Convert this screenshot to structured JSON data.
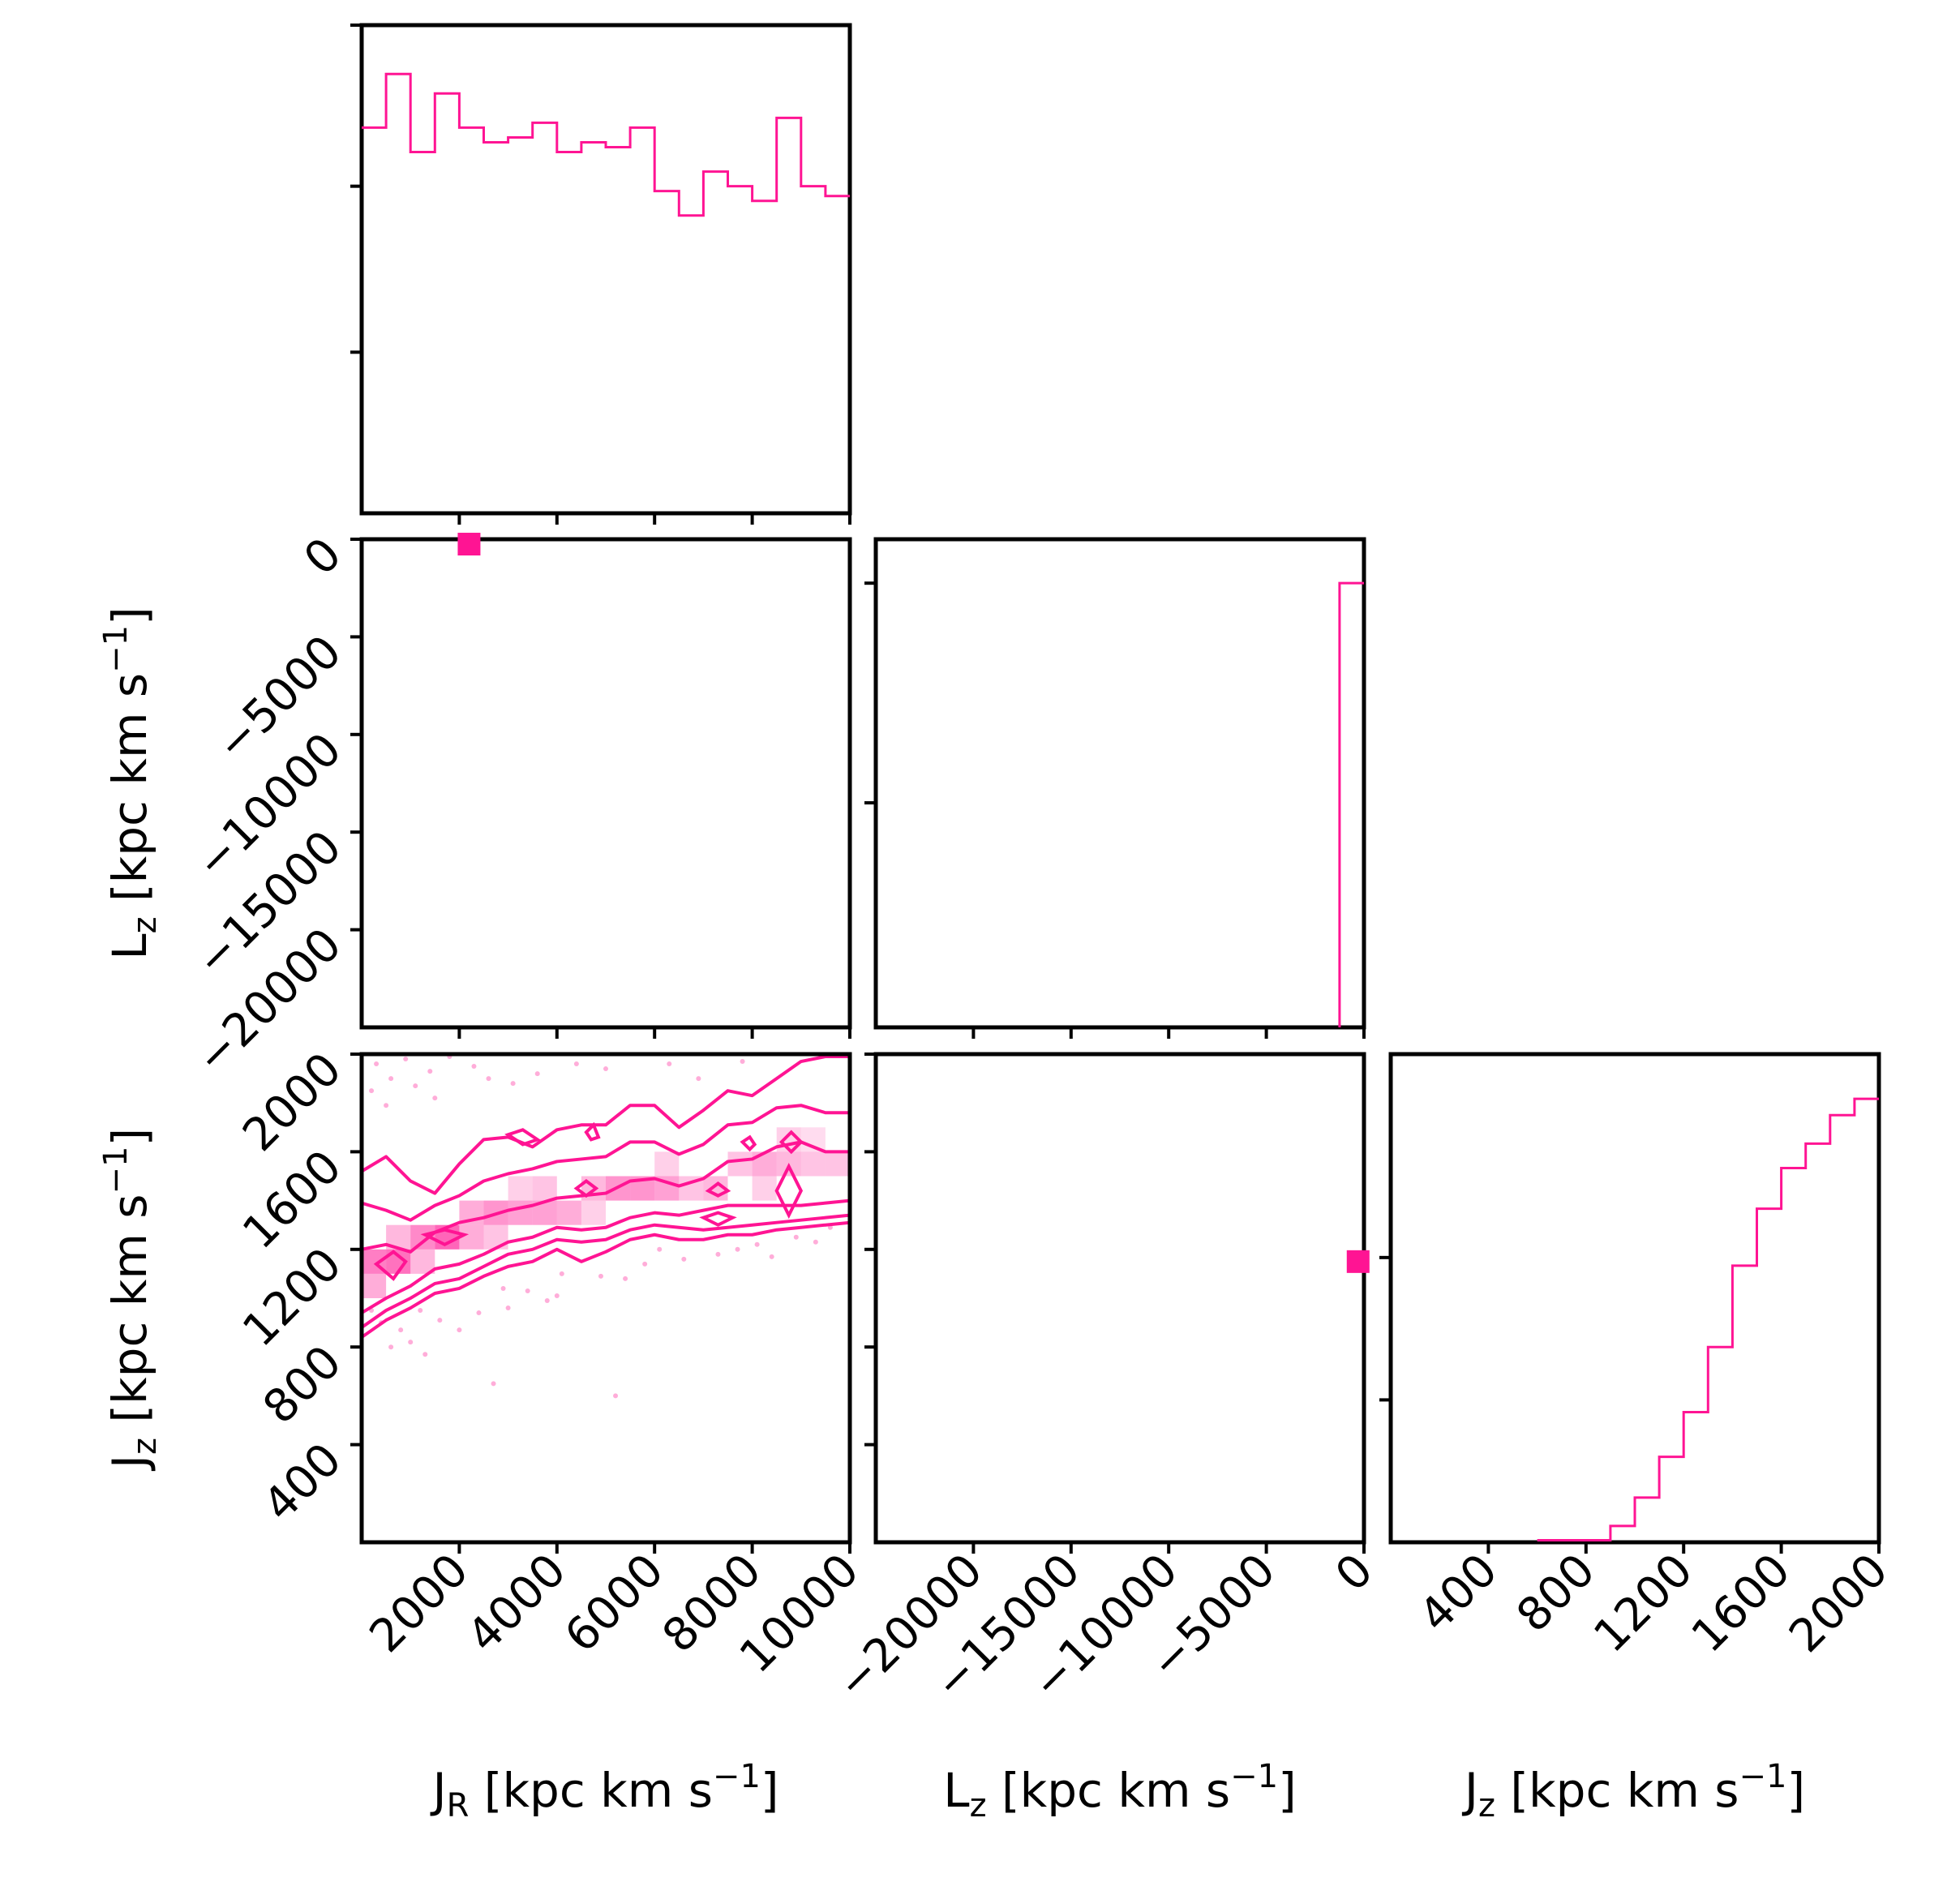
{
  "colors": {
    "accent": "#ff1493",
    "axis": "#000000",
    "background": "#ffffff"
  },
  "axis_labels": {
    "jr": {
      "main": "J",
      "sub": "R",
      "unit": " [kpc km s",
      "exp": "−1",
      "close": "]"
    },
    "lz": {
      "main": "L",
      "sub": "z",
      "unit": " [kpc km s",
      "exp": "−1",
      "close": "]"
    },
    "jz": {
      "main": "J",
      "sub": "z",
      "unit": " [kpc km s",
      "exp": "−1",
      "close": "]"
    }
  },
  "chart_data": {
    "type": "corner",
    "variables": [
      "J_R",
      "L_z",
      "J_z"
    ],
    "ranges": {
      "jr": [
        0,
        10000
      ],
      "lz": [
        -25000,
        0
      ],
      "jz": [
        0,
        2000
      ]
    },
    "tick_labels": {
      "jr": [
        "2000",
        "4000",
        "6000",
        "8000",
        "10000"
      ],
      "lz": [
        "−20000",
        "−15000",
        "−10000",
        "−5000",
        "0"
      ],
      "jz": [
        "400",
        "800",
        "1200",
        "1600",
        "2000"
      ]
    },
    "ticks": {
      "jr": [
        2000,
        4000,
        6000,
        8000,
        10000
      ],
      "lz": [
        -20000,
        -15000,
        -10000,
        -5000,
        0
      ],
      "jz": [
        400,
        800,
        1200,
        1600,
        2000
      ]
    },
    "hist_jr": {
      "bin_edges": [
        0,
        500,
        1000,
        1500,
        2000,
        2500,
        3000,
        3500,
        4000,
        4500,
        5000,
        5500,
        6000,
        6500,
        7000,
        7500,
        8000,
        8500,
        9000,
        9500,
        10000
      ],
      "counts": [
        0.79,
        0.9,
        0.74,
        0.86,
        0.79,
        0.76,
        0.77,
        0.8,
        0.74,
        0.76,
        0.75,
        0.79,
        0.66,
        0.61,
        0.7,
        0.67,
        0.64,
        0.81,
        0.67,
        0.65
      ],
      "yticks": [
        0.33,
        0.67,
        1.0
      ]
    },
    "hist_lz": {
      "bin_edges": [
        -25000,
        -1250,
        0
      ],
      "counts": [
        0,
        0.91
      ],
      "yticks": [
        0.46,
        0.91
      ]
    },
    "hist_jz": {
      "bin_edges": [
        0,
        100,
        200,
        300,
        400,
        500,
        600,
        700,
        800,
        900,
        1000,
        1100,
        1200,
        1300,
        1400,
        1500,
        1600,
        1700,
        1800,
        1900,
        2000
      ],
      "counts": [
        0,
        0,
        0,
        0,
        0,
        0,
        0.005,
        0.005,
        0.005,
        0.04,
        0.11,
        0.21,
        0.32,
        0.48,
        0.68,
        0.82,
        0.92,
        0.98,
        1.05,
        1.09
      ],
      "yticks": [
        0.35,
        0.7
      ]
    },
    "jr_lz_points": [
      {
        "x": 2200,
        "y": -250
      }
    ],
    "lz_jz_points": [
      {
        "x": -300,
        "y": 1150
      }
    ],
    "jr_jz_density": {
      "contour_levels": [
        {
          "name": "outer",
          "upper": [
            [
              0,
              1520
            ],
            [
              500,
              1580
            ],
            [
              1000,
              1480
            ],
            [
              1500,
              1430
            ],
            [
              2000,
              1550
            ],
            [
              2500,
              1650
            ],
            [
              3000,
              1660
            ],
            [
              3500,
              1620
            ],
            [
              4000,
              1690
            ],
            [
              4500,
              1710
            ],
            [
              5000,
              1710
            ],
            [
              5500,
              1790
            ],
            [
              6000,
              1790
            ],
            [
              6500,
              1700
            ],
            [
              7000,
              1770
            ],
            [
              7500,
              1850
            ],
            [
              8000,
              1830
            ],
            [
              8500,
              1900
            ],
            [
              9000,
              1970
            ],
            [
              9500,
              1990
            ],
            [
              10000,
              1990
            ]
          ],
          "lower": [
            [
              10000,
              1310
            ],
            [
              9500,
              1300
            ],
            [
              9000,
              1290
            ],
            [
              8500,
              1280
            ],
            [
              8000,
              1260
            ],
            [
              7500,
              1260
            ],
            [
              7000,
              1240
            ],
            [
              6500,
              1240
            ],
            [
              6000,
              1260
            ],
            [
              5500,
              1240
            ],
            [
              5000,
              1190
            ],
            [
              4500,
              1150
            ],
            [
              4000,
              1200
            ],
            [
              3500,
              1150
            ],
            [
              3000,
              1130
            ],
            [
              2500,
              1090
            ],
            [
              2000,
              1040
            ],
            [
              1500,
              1020
            ],
            [
              1000,
              960
            ],
            [
              500,
              910
            ],
            [
              0,
              840
            ]
          ]
        },
        {
          "name": "second",
          "upper": [
            [
              0,
              1390
            ],
            [
              500,
              1360
            ],
            [
              1000,
              1320
            ],
            [
              1500,
              1380
            ],
            [
              2000,
              1420
            ],
            [
              2500,
              1480
            ],
            [
              3000,
              1510
            ],
            [
              3500,
              1530
            ],
            [
              4000,
              1560
            ],
            [
              4500,
              1570
            ],
            [
              5000,
              1580
            ],
            [
              5500,
              1640
            ],
            [
              6000,
              1640
            ],
            [
              6500,
              1590
            ],
            [
              7000,
              1630
            ],
            [
              7500,
              1710
            ],
            [
              8000,
              1720
            ],
            [
              8500,
              1780
            ],
            [
              9000,
              1790
            ],
            [
              9500,
              1760
            ],
            [
              10000,
              1760
            ]
          ],
          "lower": [
            [
              10000,
              1340
            ],
            [
              9500,
              1330
            ],
            [
              9000,
              1320
            ],
            [
              8500,
              1310
            ],
            [
              8000,
              1300
            ],
            [
              7500,
              1290
            ],
            [
              7000,
              1280
            ],
            [
              6500,
              1290
            ],
            [
              6000,
              1300
            ],
            [
              5500,
              1280
            ],
            [
              5000,
              1240
            ],
            [
              4500,
              1230
            ],
            [
              4000,
              1240
            ],
            [
              3500,
              1200
            ],
            [
              3000,
              1180
            ],
            [
              2500,
              1130
            ],
            [
              2000,
              1080
            ],
            [
              1500,
              1060
            ],
            [
              1000,
              1000
            ],
            [
              500,
              950
            ],
            [
              0,
              880
            ]
          ]
        },
        {
          "name": "third",
          "upper": [
            [
              0,
              1200
            ],
            [
              500,
              1220
            ],
            [
              1000,
              1190
            ],
            [
              1500,
              1270
            ],
            [
              2000,
              1310
            ],
            [
              2500,
              1330
            ],
            [
              3000,
              1360
            ],
            [
              3500,
              1380
            ],
            [
              4000,
              1410
            ],
            [
              4500,
              1420
            ],
            [
              5000,
              1430
            ],
            [
              5500,
              1480
            ],
            [
              6000,
              1490
            ],
            [
              6500,
              1460
            ],
            [
              7000,
              1490
            ],
            [
              7500,
              1560
            ],
            [
              8000,
              1570
            ],
            [
              8500,
              1620
            ],
            [
              9000,
              1640
            ],
            [
              9500,
              1600
            ],
            [
              10000,
              1600
            ]
          ],
          "lower": [
            [
              10000,
              1400
            ],
            [
              9500,
              1390
            ],
            [
              9000,
              1380
            ],
            [
              8500,
              1380
            ],
            [
              8000,
              1380
            ],
            [
              7500,
              1380
            ],
            [
              7000,
              1360
            ],
            [
              6500,
              1340
            ],
            [
              6000,
              1350
            ],
            [
              5500,
              1330
            ],
            [
              5000,
              1290
            ],
            [
              4500,
              1280
            ],
            [
              4000,
              1290
            ],
            [
              3500,
              1250
            ],
            [
              3000,
              1230
            ],
            [
              2500,
              1180
            ],
            [
              2000,
              1140
            ],
            [
              1500,
              1120
            ],
            [
              1000,
              1050
            ],
            [
              500,
              1000
            ],
            [
              0,
              940
            ]
          ]
        }
      ],
      "islands": [
        [
          [
            300,
            1140
          ],
          [
            650,
            1190
          ],
          [
            900,
            1150
          ],
          [
            650,
            1080
          ]
        ],
        [
          [
            1300,
            1260
          ],
          [
            1700,
            1280
          ],
          [
            2100,
            1260
          ],
          [
            1700,
            1220
          ]
        ],
        [
          [
            3000,
            1670
          ],
          [
            3300,
            1690
          ],
          [
            3600,
            1650
          ],
          [
            3300,
            1630
          ]
        ],
        [
          [
            4400,
            1450
          ],
          [
            4600,
            1480
          ],
          [
            4800,
            1450
          ],
          [
            4600,
            1420
          ]
        ],
        [
          [
            4600,
            1680
          ],
          [
            4750,
            1710
          ],
          [
            4850,
            1660
          ],
          [
            4700,
            1650
          ]
        ],
        [
          [
            7100,
            1440
          ],
          [
            7300,
            1470
          ],
          [
            7500,
            1440
          ],
          [
            7300,
            1420
          ]
        ],
        [
          [
            7000,
            1330
          ],
          [
            7300,
            1350
          ],
          [
            7600,
            1330
          ],
          [
            7300,
            1300
          ]
        ],
        [
          [
            7800,
            1640
          ],
          [
            7950,
            1660
          ],
          [
            8050,
            1630
          ],
          [
            7950,
            1610
          ]
        ],
        [
          [
            8600,
            1640
          ],
          [
            8800,
            1680
          ],
          [
            9000,
            1640
          ],
          [
            8800,
            1600
          ]
        ],
        [
          [
            8500,
            1440
          ],
          [
            8750,
            1540
          ],
          [
            9000,
            1440
          ],
          [
            8750,
            1340
          ]
        ]
      ],
      "cells": [
        [
          250,
          1150,
          0.55
        ],
        [
          750,
          1150,
          0.6
        ],
        [
          250,
          1050,
          0.35
        ],
        [
          750,
          1250,
          0.3
        ],
        [
          1250,
          1250,
          0.5
        ],
        [
          1750,
          1250,
          0.65
        ],
        [
          2250,
          1250,
          0.35
        ],
        [
          2750,
          1350,
          0.45
        ],
        [
          3250,
          1350,
          0.4
        ],
        [
          2250,
          1350,
          0.35
        ],
        [
          3750,
          1350,
          0.4
        ],
        [
          3750,
          1450,
          0.25
        ],
        [
          4250,
          1350,
          0.35
        ],
        [
          4750,
          1450,
          0.3
        ],
        [
          5250,
          1450,
          0.45
        ],
        [
          5750,
          1450,
          0.45
        ],
        [
          6250,
          1450,
          0.4
        ],
        [
          6250,
          1550,
          0.2
        ],
        [
          6750,
          1450,
          0.25
        ],
        [
          7250,
          1450,
          0.3
        ],
        [
          7750,
          1550,
          0.25
        ],
        [
          8250,
          1550,
          0.35
        ],
        [
          8750,
          1550,
          0.3
        ],
        [
          9250,
          1550,
          0.25
        ],
        [
          9750,
          1550,
          0.25
        ],
        [
          8250,
          1450,
          0.2
        ],
        [
          8750,
          1650,
          0.2
        ],
        [
          2750,
          1250,
          0.25
        ],
        [
          4750,
          1350,
          0.2
        ],
        [
          1250,
          1150,
          0.3
        ],
        [
          3250,
          1450,
          0.2
        ],
        [
          9250,
          1650,
          0.15
        ]
      ],
      "scatter_points": [
        [
          300,
          1960
        ],
        [
          900,
          1980
        ],
        [
          1400,
          1930
        ],
        [
          1800,
          1990
        ],
        [
          2300,
          1950
        ],
        [
          600,
          1900
        ],
        [
          200,
          1850
        ],
        [
          1100,
          1870
        ],
        [
          2600,
          1900
        ],
        [
          500,
          1790
        ],
        [
          1500,
          1820
        ],
        [
          3600,
          1920
        ],
        [
          4400,
          1960
        ],
        [
          5000,
          1940
        ],
        [
          3100,
          1880
        ],
        [
          6300,
          1960
        ],
        [
          6900,
          1900
        ],
        [
          7800,
          1970
        ],
        [
          2000,
          870
        ],
        [
          2400,
          940
        ],
        [
          3000,
          960
        ],
        [
          3400,
          1030
        ],
        [
          4000,
          1010
        ],
        [
          5400,
          1080
        ],
        [
          6600,
          1160
        ],
        [
          7700,
          1200
        ],
        [
          8400,
          1170
        ],
        [
          9300,
          1230
        ],
        [
          600,
          800
        ],
        [
          1000,
          820
        ],
        [
          1600,
          910
        ],
        [
          4100,
          1100
        ],
        [
          4900,
          1090
        ],
        [
          5800,
          1140
        ],
        [
          8900,
          1250
        ],
        [
          7300,
          1180
        ],
        [
          2700,
          650
        ],
        [
          5200,
          600
        ],
        [
          1300,
          770
        ],
        [
          3800,
          990
        ],
        [
          6100,
          1200
        ],
        [
          8100,
          1220
        ],
        [
          9600,
          1290
        ],
        [
          2900,
          1040
        ],
        [
          400,
          900
        ],
        [
          800,
          870
        ],
        [
          1200,
          950
        ],
        [
          200,
          950
        ]
      ]
    }
  }
}
